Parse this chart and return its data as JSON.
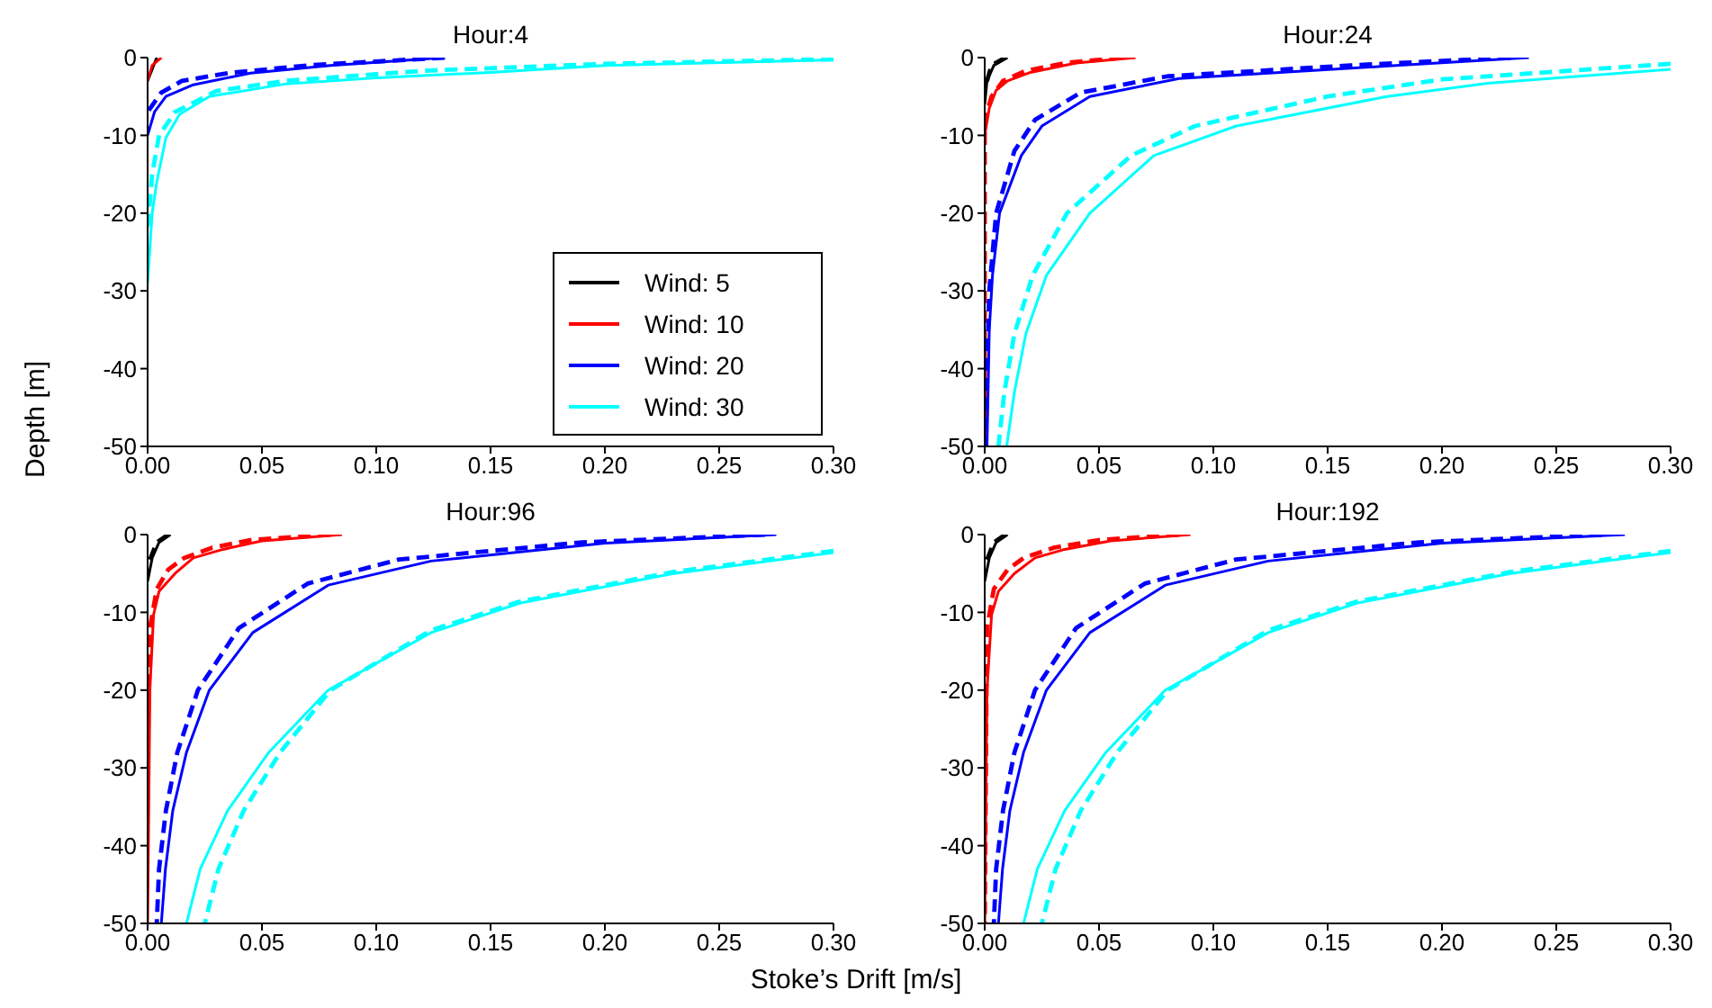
{
  "chart_data": [
    {
      "type": "line",
      "title": "Hour:4",
      "ylabel": "Depth [m]",
      "legend": "bottom right",
      "xlim": [
        0,
        0.3
      ],
      "ylim": [
        -50,
        0
      ],
      "xticks": [
        {
          "value": 0,
          "label": "0.00"
        },
        {
          "value": 0.05,
          "label": "0.05"
        },
        {
          "value": 0.1,
          "label": "0.10"
        },
        {
          "value": 0.15,
          "label": "0.15"
        },
        {
          "value": 0.2,
          "label": "0.20"
        },
        {
          "value": 0.25,
          "label": "0.25"
        },
        {
          "value": 0.3,
          "label": "0.30"
        }
      ],
      "yticks": [
        -50,
        -40,
        -30,
        -20,
        -10,
        0
      ],
      "series": [
        {
          "name": "Wind: 5",
          "color": "#000000",
          "line_style": "solid",
          "x": [
            0.004,
            0
          ],
          "values": [
            0,
            -3
          ]
        },
        {
          "name": "Wind: 10",
          "color": "#ff0000",
          "line_style": "solid",
          "x": [
            0.006,
            0.002,
            0
          ],
          "values": [
            0,
            -1,
            -3
          ]
        },
        {
          "name": "Wind: 20",
          "color": "#0000ff",
          "line_style": "solid",
          "x": [
            0.13,
            0.08,
            0.045,
            0.02,
            0.008,
            0.003,
            0
          ],
          "values": [
            0,
            -1,
            -2,
            -3.5,
            -5,
            -7,
            -10
          ]
        },
        {
          "color": "#0000ff",
          "line_style": "dashed",
          "x": [
            0.13,
            0.07,
            0.035,
            0.015,
            0.006,
            0
          ],
          "values": [
            0,
            -1,
            -2,
            -3,
            -4.5,
            -7
          ]
        },
        {
          "name": "Wind: 30",
          "color": "#00ffff",
          "line_style": "solid",
          "x": [
            0.3,
            0.2,
            0.15,
            0.1,
            0.06,
            0.027,
            0.014,
            0.008,
            0.004,
            0.002,
            0
          ],
          "values": [
            -0.3,
            -1,
            -1.9,
            -2.6,
            -3.4,
            -5,
            -7.3,
            -10.3,
            -16,
            -20,
            -29
          ]
        },
        {
          "color": "#00ffff",
          "line_style": "dashed",
          "x": [
            0.3,
            0.2,
            0.12,
            0.06,
            0.03,
            0.012,
            0.005,
            0.002,
            0
          ],
          "values": [
            -0.2,
            -0.8,
            -1.7,
            -3,
            -4.3,
            -7,
            -10,
            -15,
            -22
          ]
        }
      ]
    },
    {
      "type": "line",
      "title": "Hour:24",
      "legend": false,
      "xlim": [
        0,
        0.3
      ],
      "ylim": [
        -50,
        0
      ],
      "xticks": [
        {
          "value": 0,
          "label": "0.00"
        },
        {
          "value": 0.05,
          "label": "0.05"
        },
        {
          "value": 0.1,
          "label": "0.10"
        },
        {
          "value": 0.15,
          "label": "0.15"
        },
        {
          "value": 0.2,
          "label": "0.20"
        },
        {
          "value": 0.25,
          "label": "0.25"
        },
        {
          "value": 0.3,
          "label": "0.30"
        }
      ],
      "yticks": [
        -50,
        -40,
        -30,
        -20,
        -10,
        0
      ],
      "series": [
        {
          "color": "#000000",
          "line_style": "solid",
          "x": [
            0.01,
            0.004,
            0.001,
            0
          ],
          "values": [
            0,
            -1,
            -3,
            -6
          ]
        },
        {
          "color": "#000000",
          "line_style": "dashed",
          "x": [
            0.009,
            0.003,
            0
          ],
          "values": [
            0,
            -1,
            -4
          ]
        },
        {
          "color": "#ff0000",
          "line_style": "solid",
          "x": [
            0.066,
            0.04,
            0.02,
            0.01,
            0.005,
            0.002,
            0
          ],
          "values": [
            0,
            -0.7,
            -1.9,
            -3,
            -4.2,
            -6.5,
            -10
          ]
        },
        {
          "color": "#ff0000",
          "line_style": "dashed",
          "x": [
            0.06,
            0.035,
            0.018,
            0.008,
            0.003,
            0,
            0
          ],
          "values": [
            0,
            -0.7,
            -1.7,
            -3,
            -5,
            -8,
            -50
          ]
        },
        {
          "color": "#0000ff",
          "line_style": "solid",
          "x": [
            0.238,
            0.175,
            0.085,
            0.046,
            0.025,
            0.016,
            0.0065,
            0.0034,
            0.002,
            0.001
          ],
          "values": [
            0,
            -1.1,
            -2.7,
            -5,
            -8.8,
            -12.6,
            -20,
            -28,
            -35,
            -50
          ]
        },
        {
          "color": "#0000ff",
          "line_style": "dashed",
          "x": [
            0.23,
            0.16,
            0.08,
            0.042,
            0.022,
            0.013,
            0.005,
            0.002,
            0
          ],
          "values": [
            0,
            -1,
            -2.4,
            -4.5,
            -8,
            -12,
            -20,
            -30,
            -50
          ]
        },
        {
          "color": "#00ffff",
          "line_style": "solid",
          "x": [
            0.3,
            0.22,
            0.176,
            0.11,
            0.074,
            0.046,
            0.027,
            0.018,
            0.013,
            0.0096
          ],
          "values": [
            -1.5,
            -3.3,
            -5,
            -8.8,
            -12.6,
            -20,
            -28,
            -35.5,
            -43,
            -50
          ]
        },
        {
          "color": "#00ffff",
          "line_style": "dashed",
          "x": [
            0.3,
            0.2,
            0.15,
            0.092,
            0.064,
            0.036,
            0.021,
            0.013,
            0.0086,
            0.006
          ],
          "values": [
            -0.8,
            -2.8,
            -5,
            -8.8,
            -12.6,
            -20,
            -28,
            -35.5,
            -43,
            -50
          ]
        }
      ]
    },
    {
      "type": "line",
      "title": "Hour:96",
      "xlabel": "Stoke’s Drift [m/s]",
      "legend": false,
      "xlim": [
        0,
        0.3
      ],
      "ylim": [
        -50,
        0
      ],
      "xticks": [
        {
          "value": 0,
          "label": "0.00"
        },
        {
          "value": 0.05,
          "label": "0.05"
        },
        {
          "value": 0.1,
          "label": "0.10"
        },
        {
          "value": 0.15,
          "label": "0.15"
        },
        {
          "value": 0.2,
          "label": "0.20"
        },
        {
          "value": 0.25,
          "label": "0.25"
        },
        {
          "value": 0.3,
          "label": "0.30"
        }
      ],
      "yticks": [
        -50,
        -40,
        -30,
        -20,
        -10,
        0
      ],
      "series": [
        {
          "color": "#000000",
          "line_style": "solid",
          "x": [
            0.01,
            0.005,
            0.002,
            0
          ],
          "values": [
            0,
            -1,
            -3,
            -6
          ]
        },
        {
          "color": "#000000",
          "line_style": "dashed",
          "x": [
            0.009,
            0.004,
            0
          ],
          "values": [
            0,
            -1,
            -4
          ]
        },
        {
          "color": "#ff0000",
          "line_style": "solid",
          "x": [
            0.085,
            0.05,
            0.033,
            0.02,
            0.012,
            0.005,
            0.0026,
            0.001,
            0
          ],
          "values": [
            0,
            -0.8,
            -1.9,
            -3,
            -5,
            -7.3,
            -10.3,
            -20,
            -50
          ]
        },
        {
          "color": "#ff0000",
          "line_style": "dashed",
          "x": [
            0.08,
            0.045,
            0.028,
            0.016,
            0.009,
            0.004,
            0.001,
            0
          ],
          "values": [
            0,
            -0.7,
            -1.7,
            -3,
            -4.5,
            -7,
            -12,
            -20
          ]
        },
        {
          "color": "#0000ff",
          "line_style": "solid",
          "x": [
            0.275,
            0.2,
            0.124,
            0.079,
            0.046,
            0.027,
            0.017,
            0.011,
            0.0078,
            0.006
          ],
          "values": [
            0,
            -1.1,
            -3.4,
            -6.5,
            -12.6,
            -20,
            -28,
            -35.5,
            -43,
            -50
          ]
        },
        {
          "color": "#0000ff",
          "line_style": "dashed",
          "x": [
            0.27,
            0.19,
            0.11,
            0.07,
            0.04,
            0.022,
            0.013,
            0.008,
            0.005,
            0.004
          ],
          "values": [
            0,
            -1,
            -3.2,
            -6.3,
            -12,
            -20,
            -28,
            -35.5,
            -43,
            -50
          ]
        },
        {
          "color": "#00ffff",
          "line_style": "solid",
          "x": [
            0.3,
            0.23,
            0.163,
            0.124,
            0.079,
            0.053,
            0.035,
            0.023,
            0.017
          ],
          "values": [
            -2.3,
            -5,
            -8.8,
            -12.6,
            -20,
            -28,
            -35.5,
            -43,
            -50
          ]
        },
        {
          "color": "#00ffff",
          "line_style": "dashed",
          "x": [
            0.3,
            0.23,
            0.163,
            0.124,
            0.08,
            0.058,
            0.042,
            0.031,
            0.025
          ],
          "values": [
            -2.1,
            -4.8,
            -8.6,
            -12.3,
            -20,
            -28,
            -35.5,
            -43,
            -50
          ]
        }
      ]
    },
    {
      "type": "line",
      "title": "Hour:192",
      "legend": false,
      "xlim": [
        0,
        0.3
      ],
      "ylim": [
        -50,
        0
      ],
      "xticks": [
        {
          "value": 0,
          "label": "0.00"
        },
        {
          "value": 0.05,
          "label": "0.05"
        },
        {
          "value": 0.1,
          "label": "0.10"
        },
        {
          "value": 0.15,
          "label": "0.15"
        },
        {
          "value": 0.2,
          "label": "0.20"
        },
        {
          "value": 0.25,
          "label": "0.25"
        },
        {
          "value": 0.3,
          "label": "0.30"
        }
      ],
      "yticks": [
        -50,
        -40,
        -30,
        -20,
        -10,
        0
      ],
      "series": [
        {
          "color": "#000000",
          "line_style": "solid",
          "x": [
            0.01,
            0.005,
            0.002,
            0
          ],
          "values": [
            0,
            -1,
            -3,
            -6
          ]
        },
        {
          "color": "#000000",
          "line_style": "dashed",
          "x": [
            0.009,
            0.004,
            0
          ],
          "values": [
            0,
            -1,
            -4
          ]
        },
        {
          "color": "#ff0000",
          "line_style": "solid",
          "x": [
            0.09,
            0.055,
            0.035,
            0.022,
            0.013,
            0.006,
            0.003,
            0.001,
            0
          ],
          "values": [
            0,
            -0.8,
            -1.9,
            -3,
            -5,
            -7.3,
            -10.3,
            -20,
            -50
          ]
        },
        {
          "color": "#ff0000",
          "line_style": "dashed",
          "x": [
            0.085,
            0.05,
            0.03,
            0.017,
            0.01,
            0.004,
            0.001,
            0
          ],
          "values": [
            0,
            -0.7,
            -1.7,
            -3,
            -4.5,
            -7,
            -12,
            -50
          ]
        },
        {
          "color": "#0000ff",
          "line_style": "solid",
          "x": [
            0.28,
            0.2,
            0.124,
            0.079,
            0.046,
            0.027,
            0.017,
            0.011,
            0.0078,
            0.006
          ],
          "values": [
            0,
            -1.1,
            -3.4,
            -6.5,
            -12.6,
            -20,
            -28,
            -35.5,
            -43,
            -50
          ]
        },
        {
          "color": "#0000ff",
          "line_style": "dashed",
          "x": [
            0.27,
            0.19,
            0.11,
            0.07,
            0.04,
            0.022,
            0.013,
            0.008,
            0.005,
            0.004
          ],
          "values": [
            0,
            -1,
            -3.2,
            -6.3,
            -12,
            -20,
            -28,
            -35.5,
            -43,
            -50
          ]
        },
        {
          "color": "#00ffff",
          "line_style": "solid",
          "x": [
            0.3,
            0.23,
            0.163,
            0.124,
            0.079,
            0.053,
            0.035,
            0.023,
            0.017
          ],
          "values": [
            -2.3,
            -5,
            -8.8,
            -12.6,
            -20,
            -28,
            -35.5,
            -43,
            -50
          ]
        },
        {
          "color": "#00ffff",
          "line_style": "dashed",
          "x": [
            0.3,
            0.23,
            0.163,
            0.124,
            0.08,
            0.058,
            0.042,
            0.031,
            0.025
          ],
          "values": [
            -2.1,
            -4.8,
            -8.6,
            -12.3,
            -20,
            -28,
            -35.5,
            -43,
            -50
          ]
        }
      ]
    }
  ]
}
